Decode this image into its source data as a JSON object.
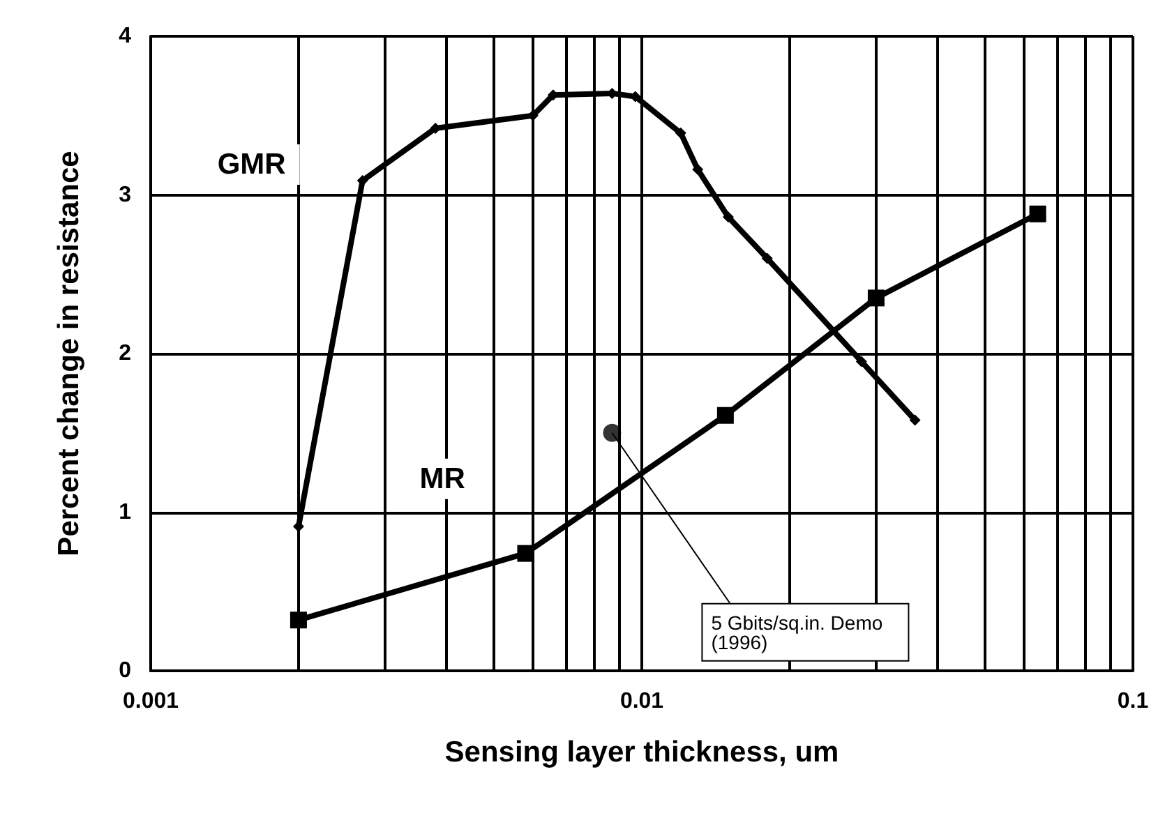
{
  "chart_data": {
    "type": "line",
    "xlabel": "Sensing layer thickness, um",
    "ylabel": "Percent change in resistance",
    "log": "x",
    "grid": true,
    "line_style": "solid",
    "xlim": [
      0.001,
      0.1
    ],
    "ylim": [
      0,
      4
    ],
    "yticks": [
      0,
      1,
      2,
      3,
      4
    ],
    "xticks": [
      0.001,
      {
        "value": 0.002,
        "label": null
      },
      {
        "value": 0.003,
        "label": null
      },
      {
        "value": 0.004,
        "label": null
      },
      {
        "value": 0.005,
        "label": null
      },
      {
        "value": 0.006,
        "label": null
      },
      {
        "value": 0.007,
        "label": null
      },
      {
        "value": 0.008,
        "label": null
      },
      {
        "value": 0.009,
        "label": null
      },
      0.01,
      {
        "value": 0.02,
        "label": null
      },
      {
        "value": 0.03,
        "label": null
      },
      {
        "value": 0.04,
        "label": null
      },
      {
        "value": 0.05,
        "label": null
      },
      {
        "value": 0.06,
        "label": null
      },
      {
        "value": 0.07,
        "label": null
      },
      {
        "value": 0.08,
        "label": null
      },
      {
        "value": 0.09,
        "label": null
      },
      0.1
    ],
    "series": [
      {
        "name": "GMR",
        "color": "#000000",
        "marker": "diamond",
        "x": [
          0.002,
          0.0027,
          0.0038,
          0.006,
          0.0066,
          0.0087,
          0.0097,
          0.012,
          0.013,
          0.015,
          0.018,
          0.028,
          0.036
        ],
        "values": [
          0.91,
          3.09,
          3.42,
          3.5,
          3.63,
          3.64,
          3.62,
          3.39,
          3.16,
          2.86,
          2.6,
          1.95,
          1.58
        ]
      },
      {
        "name": "MR",
        "color": "#000000",
        "marker": "square",
        "x": [
          0.002,
          0.0058,
          0.0148,
          0.03,
          0.064
        ],
        "values": [
          0.32,
          0.74,
          1.61,
          2.35,
          2.88
        ]
      },
      {
        "type": "scatter",
        "color": "#000000",
        "marker": "circle",
        "x": [
          0.0087
        ],
        "values": [
          1.5
        ]
      }
    ],
    "annotations": [
      {
        "text": "5 Gbits/sq.in. Demo (1996)",
        "x": 0.0087,
        "y": 1.5
      }
    ]
  }
}
